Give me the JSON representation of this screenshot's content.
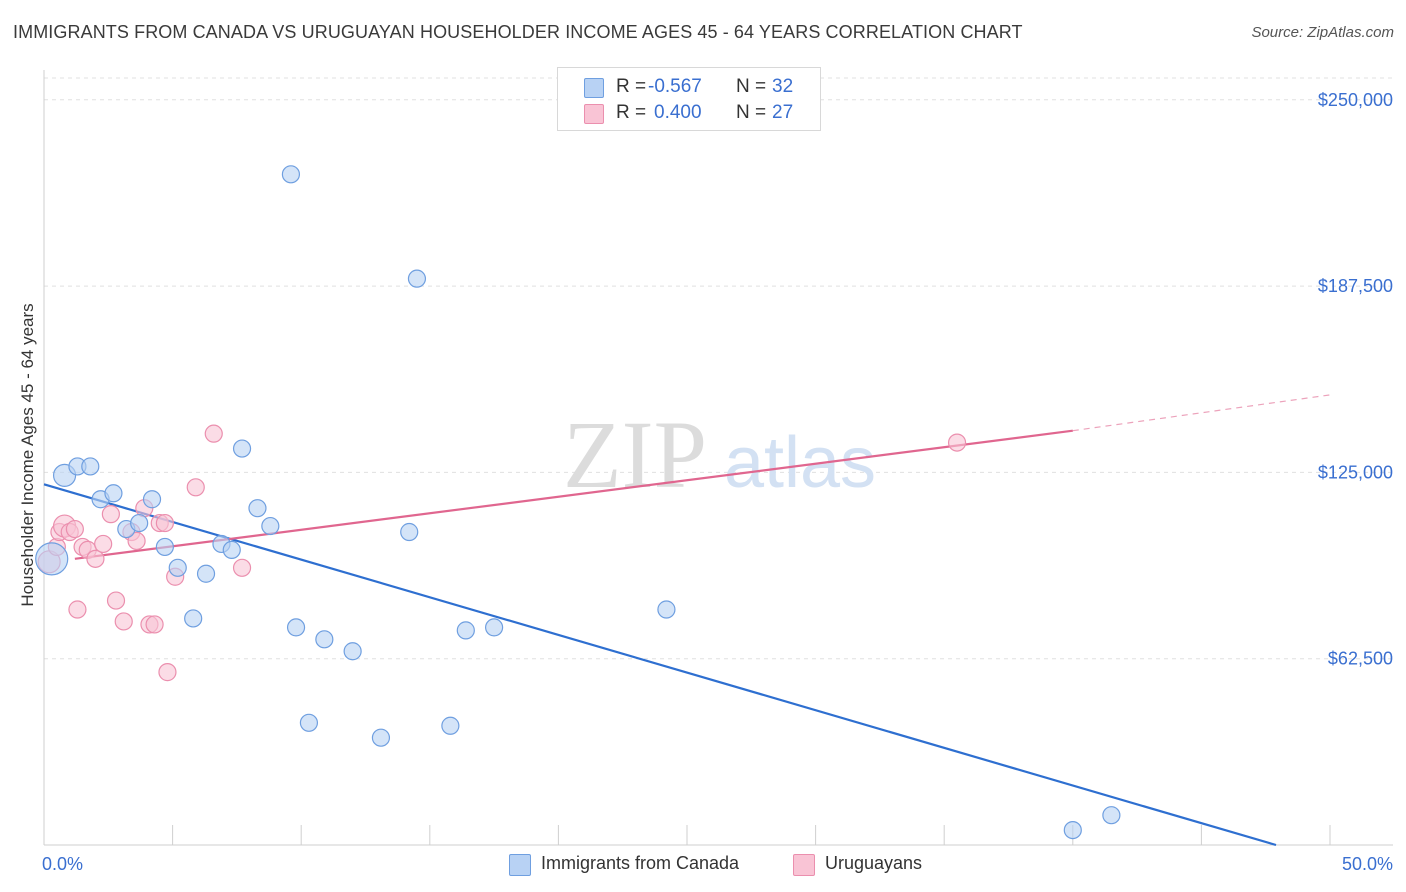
{
  "header": {
    "title": "IMMIGRANTS FROM CANADA VS URUGUAYAN HOUSEHOLDER INCOME AGES 45 - 64 YEARS CORRELATION CHART",
    "source": "Source: ZipAtlas.com"
  },
  "stats": {
    "rows": [
      {
        "r_label": "R =",
        "r_value": "-0.567",
        "n_label": "N =",
        "n_value": "32"
      },
      {
        "r_label": "R =",
        "r_value": "0.400",
        "n_label": "N =",
        "n_value": "27"
      }
    ]
  },
  "watermark": {
    "zip": "ZIP",
    "atlas": "atlas"
  },
  "colors": {
    "blue_fill": "#b8d2f4",
    "blue_stroke": "#6f9fe0",
    "blue_line": "#2e6fd0",
    "pink_fill": "#f9c4d5",
    "pink_stroke": "#eb8fae",
    "pink_line": "#e0668f",
    "tick_label": "#3a6fd0",
    "grid": "#e0e0e0"
  },
  "chart_data": {
    "type": "scatter",
    "title": "IMMIGRANTS FROM CANADA VS URUGUAYAN HOUSEHOLDER INCOME AGES 45 - 64 YEARS CORRELATION CHART",
    "xlabel": "",
    "ylabel": "Householder Income Ages 45 - 64 years",
    "xlim": [
      0,
      50
    ],
    "ylim": [
      0,
      260000
    ],
    "x_tick_labels": [
      {
        "value": 0,
        "label": "0.0%"
      },
      {
        "value": 50,
        "label": "50.0%"
      }
    ],
    "y_ticks": [
      {
        "value": 62500,
        "label": "$62,500"
      },
      {
        "value": 125000,
        "label": "$125,000"
      },
      {
        "value": 187500,
        "label": "$187,500"
      },
      {
        "value": 250000,
        "label": "$250,000"
      }
    ],
    "grid": true,
    "legend_position": "bottom-center",
    "series": [
      {
        "name": "Immigrants from Canada",
        "color": "#6f9fe0",
        "points": [
          {
            "x": 0.3,
            "y": 96000,
            "size": 16
          },
          {
            "x": 0.8,
            "y": 124000,
            "size": 11
          },
          {
            "x": 1.3,
            "y": 127000
          },
          {
            "x": 1.8,
            "y": 127000
          },
          {
            "x": 2.2,
            "y": 116000
          },
          {
            "x": 2.7,
            "y": 118000
          },
          {
            "x": 3.2,
            "y": 106000
          },
          {
            "x": 3.7,
            "y": 108000
          },
          {
            "x": 4.2,
            "y": 116000
          },
          {
            "x": 4.7,
            "y": 100000
          },
          {
            "x": 5.2,
            "y": 93000
          },
          {
            "x": 5.8,
            "y": 76000
          },
          {
            "x": 6.3,
            "y": 91000
          },
          {
            "x": 6.9,
            "y": 101000
          },
          {
            "x": 7.3,
            "y": 99000
          },
          {
            "x": 7.7,
            "y": 133000
          },
          {
            "x": 8.3,
            "y": 113000
          },
          {
            "x": 8.8,
            "y": 107000
          },
          {
            "x": 9.6,
            "y": 225000
          },
          {
            "x": 9.8,
            "y": 73000
          },
          {
            "x": 10.3,
            "y": 41000
          },
          {
            "x": 10.9,
            "y": 69000
          },
          {
            "x": 12.0,
            "y": 65000
          },
          {
            "x": 13.1,
            "y": 36000
          },
          {
            "x": 14.2,
            "y": 105000
          },
          {
            "x": 14.5,
            "y": 190000
          },
          {
            "x": 15.8,
            "y": 40000
          },
          {
            "x": 16.4,
            "y": 72000
          },
          {
            "x": 17.5,
            "y": 73000
          },
          {
            "x": 24.2,
            "y": 79000
          },
          {
            "x": 40.0,
            "y": 5000
          },
          {
            "x": 41.5,
            "y": 10000
          }
        ],
        "trend": {
          "x1": 0,
          "y1": 121000,
          "x2": 47.9,
          "y2": 0
        }
      },
      {
        "name": "Uruguayans",
        "color": "#eb8fae",
        "points": [
          {
            "x": 0.2,
            "y": 95000,
            "size": 11
          },
          {
            "x": 0.5,
            "y": 100000
          },
          {
            "x": 0.6,
            "y": 105000
          },
          {
            "x": 0.8,
            "y": 107000,
            "size": 11
          },
          {
            "x": 1.0,
            "y": 105000
          },
          {
            "x": 1.2,
            "y": 106000
          },
          {
            "x": 1.5,
            "y": 100000
          },
          {
            "x": 1.3,
            "y": 79000
          },
          {
            "x": 1.7,
            "y": 99000
          },
          {
            "x": 2.0,
            "y": 96000
          },
          {
            "x": 2.3,
            "y": 101000
          },
          {
            "x": 2.6,
            "y": 111000
          },
          {
            "x": 2.8,
            "y": 82000
          },
          {
            "x": 3.1,
            "y": 75000
          },
          {
            "x": 3.4,
            "y": 105000
          },
          {
            "x": 3.6,
            "y": 102000
          },
          {
            "x": 3.9,
            "y": 113000
          },
          {
            "x": 4.1,
            "y": 74000
          },
          {
            "x": 4.3,
            "y": 74000
          },
          {
            "x": 4.5,
            "y": 108000
          },
          {
            "x": 4.7,
            "y": 108000
          },
          {
            "x": 4.8,
            "y": 58000
          },
          {
            "x": 5.1,
            "y": 90000
          },
          {
            "x": 5.9,
            "y": 120000
          },
          {
            "x": 6.6,
            "y": 138000
          },
          {
            "x": 7.7,
            "y": 93000
          },
          {
            "x": 35.5,
            "y": 135000
          }
        ],
        "trend": {
          "x1": 1.2,
          "y1": 96000,
          "x2": 40.0,
          "y2": 139000
        },
        "trend_extension": {
          "x1": 40.0,
          "y1": 139000,
          "x2": 50.0,
          "y2": 151000
        }
      }
    ]
  },
  "legend": {
    "items": [
      {
        "label": "Immigrants from Canada"
      },
      {
        "label": "Uruguayans"
      }
    ]
  }
}
